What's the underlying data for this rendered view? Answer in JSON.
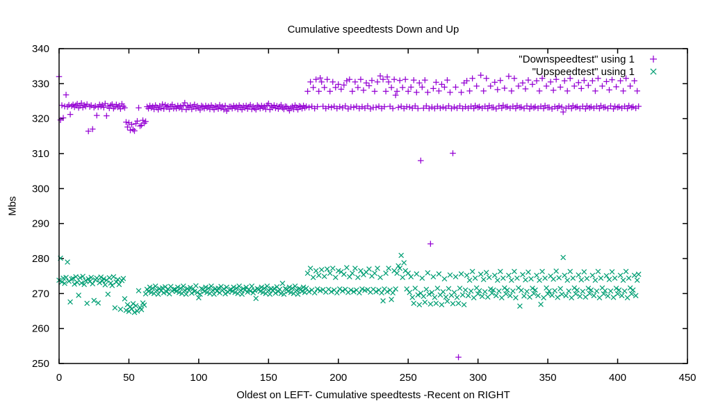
{
  "chart_data": {
    "type": "scatter",
    "title": "Cumulative speedtests Down and Up",
    "xlabel": "Oldest on LEFT- Cumulative speedtests -Recent on RIGHT",
    "ylabel": "Mbs",
    "xlim": [
      0,
      450
    ],
    "ylim": [
      250,
      340
    ],
    "x_ticks": [
      0,
      50,
      100,
      150,
      200,
      250,
      300,
      350,
      400,
      450
    ],
    "y_ticks": [
      250,
      260,
      270,
      280,
      290,
      300,
      310,
      320,
      330,
      340
    ],
    "grid": false,
    "legend_position": "top-right-inside",
    "series": [
      {
        "name": "\"Downspeedtest\" using 1",
        "marker": "plus",
        "color": "#9400d3",
        "x_start": 0,
        "x_step": 1,
        "y": [
          332.0,
          319.6,
          323.8,
          320.2,
          323.5,
          326.8,
          323.4,
          323.9,
          321.2,
          323.6,
          324.0,
          323.3,
          323.8,
          324.2,
          323.1,
          323.7,
          324.4,
          323.2,
          323.9,
          323.5,
          324.1,
          316.4,
          323.4,
          323.8,
          317.0,
          323.2,
          323.6,
          320.9,
          323.3,
          324.0,
          323.5,
          323.9,
          323.2,
          324.3,
          320.8,
          323.6,
          323.0,
          323.8,
          324.1,
          322.9,
          323.4,
          324.0,
          323.3,
          323.7,
          322.8,
          324.2,
          323.5,
          323.1,
          319.0,
          317.6,
          318.8,
          316.7,
          318.3,
          316.9,
          316.5,
          318.6,
          319.3,
          323.1,
          317.9,
          318.1,
          319.5,
          318.7,
          319.2,
          323.4,
          322.9,
          323.7,
          323.1,
          323.5,
          322.7,
          323.8,
          323.2,
          322.6,
          323.6,
          323.0,
          324.1,
          322.8,
          323.9,
          323.3,
          323.6,
          322.7,
          323.5,
          324.0,
          322.9,
          323.4,
          322.9,
          323.7,
          323.1,
          323.5,
          322.7,
          323.8,
          324.5,
          322.6,
          323.6,
          323.2,
          323.8,
          322.7,
          323.4,
          324.0,
          322.9,
          323.6,
          323.1,
          322.5,
          323.7,
          323.4,
          322.9,
          323.7,
          323.1,
          323.5,
          322.7,
          323.8,
          323.2,
          322.6,
          323.6,
          323.3,
          322.8,
          323.9,
          323.0,
          323.5,
          322.6,
          323.7,
          322.2,
          322.8,
          323.4,
          323.4,
          322.9,
          323.7,
          323.1,
          323.5,
          322.7,
          323.8,
          323.2,
          322.6,
          323.6,
          323.1,
          323.7,
          322.8,
          323.4,
          323.9,
          322.7,
          323.5,
          323.0,
          322.6,
          323.8,
          323.4,
          322.9,
          323.7,
          323.1,
          323.5,
          322.7,
          323.8,
          324.3,
          322.6,
          323.6,
          323.2,
          323.8,
          323.0,
          323.6,
          322.8,
          323.4,
          323.9,
          323.1,
          322.7,
          323.5,
          323.4,
          322.9,
          322.3,
          323.1,
          323.5,
          322.7,
          323.8,
          323.2,
          322.6,
          323.6,
          323.4,
          322.9,
          323.7,
          323.1,
          323.5,
          327.8,
          323.2,
          330.5,
          323.5,
          328.9,
          322.9,
          331.2,
          323.4,
          327.8,
          331.6,
          330.5,
          323.5,
          328.9,
          322.9,
          331.2,
          323.4,
          327.8,
          323.2,
          330.5,
          323.5,
          328.9,
          322.9,
          329.8,
          323.4,
          328.4,
          323.1,
          329.6,
          323.6,
          330.8,
          322.8,
          331.2,
          323.3,
          327.8,
          323.2,
          330.5,
          323.5,
          328.9,
          322.9,
          331.2,
          323.4,
          328.1,
          323.0,
          330.2,
          323.6,
          329.4,
          322.8,
          330.9,
          323.2,
          327.8,
          323.2,
          330.5,
          323.5,
          332.2,
          322.9,
          331.2,
          323.4,
          327.8,
          331.9,
          330.5,
          323.5,
          328.9,
          322.9,
          331.2,
          326.7,
          327.8,
          323.2,
          330.9,
          323.5,
          328.9,
          322.9,
          331.2,
          323.4,
          327.8,
          323.3,
          329.0,
          323.0,
          331.0,
          323.6,
          327.5,
          322.9,
          330.2,
          308.0,
          329.0,
          323.0,
          331.0,
          323.6,
          327.5,
          322.9,
          284.2,
          323.3,
          328.6,
          322.9,
          330.4,
          323.5,
          327.9,
          323.0,
          329.8,
          323.3,
          329.0,
          323.0,
          331.0,
          323.6,
          327.5,
          322.9,
          310.1,
          323.3,
          329.0,
          323.0,
          251.8,
          323.6,
          327.5,
          322.9,
          330.2,
          323.4,
          330.8,
          323.0,
          327.9,
          323.5,
          331.5,
          322.9,
          323.7,
          329.3,
          323.2,
          323.4,
          332.4,
          323.0,
          327.9,
          323.5,
          331.5,
          322.9,
          323.7,
          329.3,
          323.2,
          323.2,
          330.4,
          322.8,
          328.3,
          323.6,
          330.9,
          323.0,
          323.8,
          328.7,
          323.3,
          323.4,
          332.1,
          323.0,
          327.9,
          323.5,
          331.5,
          322.9,
          323.7,
          329.3,
          323.2,
          323.3,
          330.2,
          322.9,
          328.5,
          323.6,
          331.0,
          322.8,
          323.5,
          329.8,
          323.1,
          323.4,
          330.8,
          323.0,
          327.9,
          323.5,
          331.5,
          322.9,
          323.7,
          329.3,
          323.2,
          323.2,
          330.5,
          322.8,
          328.1,
          323.4,
          331.2,
          323.0,
          323.6,
          329.0,
          323.3,
          321.9,
          330.8,
          323.0,
          327.9,
          323.5,
          331.5,
          322.9,
          323.7,
          329.3,
          323.2,
          323.4,
          330.3,
          322.9,
          328.6,
          323.5,
          330.9,
          322.8,
          323.6,
          329.5,
          323.1,
          323.4,
          330.8,
          323.0,
          327.9,
          323.5,
          331.5,
          322.9,
          323.7,
          329.3,
          323.2,
          323.3,
          330.6,
          322.9,
          328.2,
          323.6,
          331.1,
          322.8,
          323.5,
          329.1,
          323.2,
          323.4,
          330.8,
          323.0,
          327.9,
          323.5,
          331.5,
          322.9,
          323.7,
          329.3,
          323.2,
          323.4,
          330.8,
          323.0,
          327.9,
          323.5
        ]
      },
      {
        "name": "\"Upspeedtest\" using 1",
        "marker": "cross",
        "color": "#009e73",
        "x_start": 0,
        "x_step": 1,
        "y": [
          273.8,
          280.1,
          273.3,
          274.4,
          272.9,
          274.6,
          279.0,
          273.5,
          267.6,
          274.1,
          274.3,
          272.7,
          274.8,
          273.2,
          269.5,
          274.5,
          273.0,
          274.9,
          272.6,
          273.7,
          267.2,
          274.2,
          273.4,
          274.6,
          272.8,
          268.0,
          273.9,
          274.4,
          267.3,
          273.1,
          274.7,
          273.6,
          274.2,
          272.5,
          273.8,
          269.8,
          274.5,
          273.0,
          272.3,
          274.8,
          265.9,
          273.3,
          274.0,
          272.6,
          265.5,
          273.7,
          274.3,
          268.5,
          265.2,
          266.8,
          264.9,
          266.2,
          265.6,
          267.1,
          264.6,
          266.5,
          265.0,
          270.8,
          266.0,
          265.4,
          267.3,
          266.7,
          269.9,
          271.2,
          270.6,
          271.8,
          270.3,
          271.5,
          270.0,
          272.1,
          270.9,
          269.8,
          271.4,
          270.8,
          271.6,
          270.2,
          271.9,
          270.5,
          271.3,
          269.9,
          272.0,
          270.7,
          271.1,
          271.2,
          270.6,
          271.8,
          270.3,
          271.5,
          270.0,
          272.1,
          270.9,
          269.8,
          271.4,
          270.9,
          271.7,
          270.1,
          271.4,
          270.6,
          272.2,
          270.3,
          268.8,
          269.8,
          271.4,
          271.2,
          270.6,
          271.8,
          270.3,
          271.5,
          270.0,
          272.1,
          270.9,
          269.8,
          271.4,
          270.7,
          271.5,
          270.2,
          272.0,
          270.9,
          271.3,
          269.9,
          271.8,
          270.4,
          271.0,
          271.2,
          270.6,
          271.8,
          270.3,
          271.5,
          270.0,
          272.1,
          270.9,
          269.8,
          271.4,
          271.0,
          271.8,
          270.4,
          271.2,
          270.7,
          272.1,
          270.2,
          270.9,
          268.6,
          271.4,
          271.2,
          270.6,
          271.8,
          270.3,
          271.5,
          270.0,
          272.1,
          270.9,
          269.8,
          271.4,
          270.8,
          271.4,
          270.1,
          271.9,
          270.6,
          271.2,
          270.0,
          272.9,
          269.8,
          271.4,
          271.2,
          270.6,
          271.8,
          270.3,
          271.5,
          270.0,
          272.1,
          270.9,
          269.8,
          271.4,
          271.2,
          270.6,
          271.8,
          270.3,
          271.5,
          275.8,
          270.5,
          277.2,
          271.0,
          274.6,
          270.2,
          276.5,
          271.3,
          275.2,
          270.8,
          276.8,
          271.1,
          274.9,
          270.4,
          277.0,
          271.2,
          275.8,
          270.5,
          277.2,
          271.0,
          274.6,
          270.2,
          276.5,
          271.3,
          276.2,
          270.7,
          275.5,
          271.2,
          277.4,
          270.3,
          274.8,
          271.0,
          275.8,
          270.5,
          277.2,
          271.0,
          274.6,
          270.2,
          276.5,
          271.3,
          275.4,
          270.9,
          276.1,
          271.1,
          277.0,
          270.4,
          275.0,
          271.2,
          275.8,
          270.5,
          277.2,
          271.0,
          274.6,
          270.2,
          267.9,
          271.3,
          275.8,
          270.5,
          277.2,
          271.0,
          268.3,
          270.2,
          276.5,
          271.3,
          275.8,
          277.9,
          277.2,
          280.9,
          274.6,
          278.8,
          276.5,
          271.3,
          275.8,
          270.3,
          274.8,
          268.9,
          267.2,
          271.5,
          275.6,
          269.6,
          266.8,
          270.1,
          274.4,
          269.2,
          267.5,
          271.2,
          275.9,
          269.8,
          267.0,
          270.3,
          274.8,
          268.9,
          267.2,
          271.5,
          275.6,
          269.6,
          266.8,
          270.5,
          274.2,
          269.0,
          267.8,
          271.4,
          275.3,
          269.5,
          267.1,
          270.3,
          274.8,
          268.9,
          267.2,
          271.5,
          275.6,
          269.6,
          266.8,
          271.0,
          275.2,
          269.4,
          273.8,
          270.7,
          276.3,
          268.8,
          274.4,
          271.6,
          269.9,
          270.8,
          275.5,
          269.2,
          274.0,
          270.5,
          276.0,
          269.0,
          274.6,
          271.3,
          270.1,
          271.0,
          275.2,
          269.4,
          273.8,
          270.7,
          276.3,
          268.8,
          274.4,
          271.6,
          269.9,
          271.0,
          275.2,
          269.4,
          273.8,
          270.7,
          276.3,
          268.8,
          274.4,
          271.6,
          266.4,
          270.9,
          275.4,
          269.3,
          273.9,
          270.6,
          276.1,
          269.0,
          274.2,
          271.5,
          270.0,
          271.0,
          275.2,
          269.4,
          273.8,
          266.9,
          276.3,
          268.8,
          274.4,
          271.6,
          269.9,
          270.7,
          275.0,
          269.5,
          274.1,
          270.8,
          276.4,
          268.9,
          274.5,
          271.4,
          269.8,
          280.3,
          275.2,
          269.4,
          273.8,
          270.7,
          276.3,
          268.8,
          274.4,
          271.6,
          269.9,
          271.0,
          275.3,
          269.2,
          273.9,
          270.6,
          276.2,
          269.0,
          274.3,
          271.5,
          270.0,
          271.0,
          275.2,
          269.4,
          273.8,
          270.7,
          276.3,
          268.8,
          274.4,
          271.6,
          269.9,
          270.8,
          275.1,
          269.3,
          274.0,
          270.7,
          276.2,
          268.9,
          274.4,
          271.5,
          269.9,
          271.0,
          275.2,
          269.4,
          273.8,
          270.7,
          276.3,
          268.8,
          274.4,
          271.6,
          269.9,
          271.0,
          275.2,
          269.4,
          273.8,
          275.5
        ]
      }
    ]
  }
}
